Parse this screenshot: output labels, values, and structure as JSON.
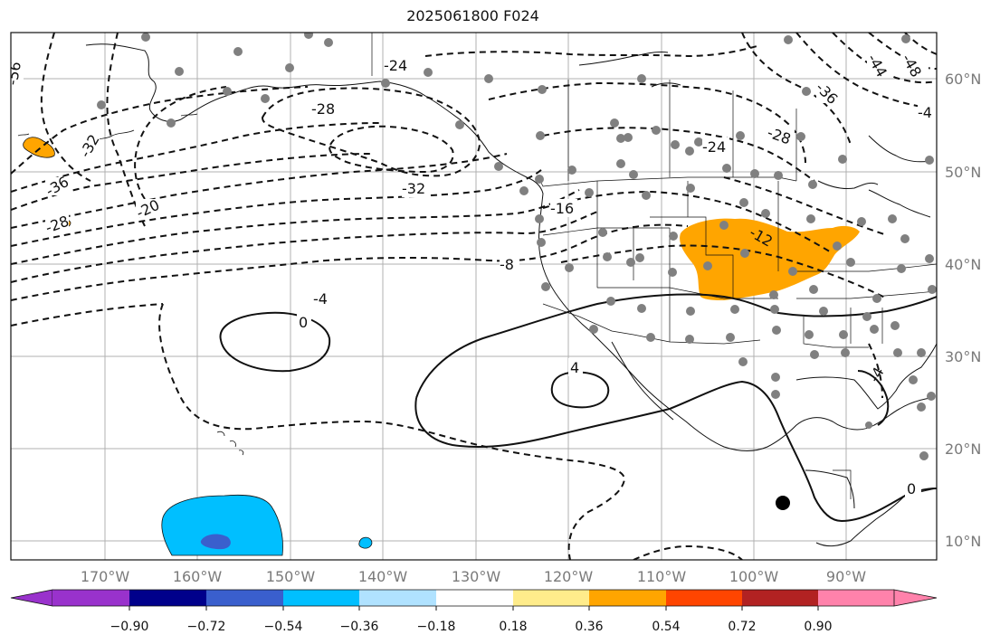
{
  "title": "2025061800 F024",
  "map": {
    "lon_labels": [
      "170°W",
      "160°W",
      "150°W",
      "140°W",
      "130°W",
      "120°W",
      "110°W",
      "100°W",
      "90°W"
    ],
    "lat_labels": [
      "60°N",
      "50°N",
      "40°N",
      "30°N",
      "20°N",
      "10°N"
    ],
    "contour_labels": [
      "-56",
      "-32",
      "-36",
      "-28",
      "-20",
      "-24",
      "-28",
      "-32",
      "-24",
      "-28",
      "-16",
      "-12",
      "-8",
      "-4",
      "0",
      "4",
      "-44",
      "-48",
      "-36",
      "-4",
      "-4",
      "0"
    ]
  },
  "colorbar": {
    "colors": [
      "#9932cc",
      "#00008b",
      "#3a5fcd",
      "#00bfff",
      "#b0e2ff",
      "#ffffff",
      "#ffec8b",
      "#ffa500",
      "#ff4500",
      "#b22222",
      "#ff82ab"
    ],
    "ticks": [
      "−0.90",
      "−0.72",
      "−0.54",
      "−0.36",
      "−0.18",
      "0.18",
      "0.36",
      "0.54",
      "0.72",
      "0.90"
    ]
  },
  "colors": {
    "positive_fill": "#ffa500",
    "negative_fill": "#00bfff",
    "negative_core": "#3a5fcd",
    "station": "#808080"
  }
}
